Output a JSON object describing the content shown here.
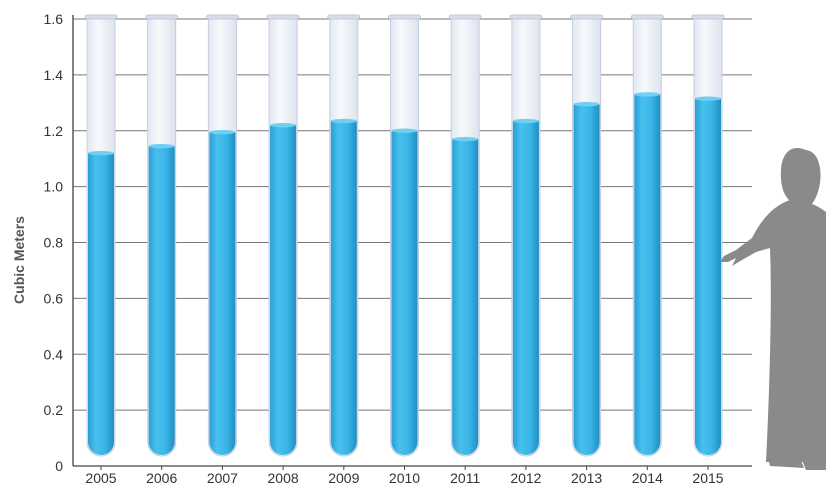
{
  "chart_data": {
    "type": "bar",
    "title": "",
    "xlabel": "",
    "ylabel": "Cubic Meters",
    "categories": [
      "2005",
      "2006",
      "2007",
      "2008",
      "2009",
      "2010",
      "2011",
      "2012",
      "2013",
      "2014",
      "2015"
    ],
    "values": [
      1.12,
      1.145,
      1.195,
      1.22,
      1.235,
      1.2,
      1.17,
      1.235,
      1.295,
      1.33,
      1.315
    ],
    "ylim": [
      0,
      1.6
    ],
    "yticks": [
      "0",
      "0.2",
      "0.4",
      "0.6",
      "0.8",
      "1.0",
      "1.2",
      "1.4",
      "1.6"
    ],
    "grid": true,
    "legend": "none",
    "bar_style": "test-tube",
    "colors": {
      "liquid": "#33b3e3",
      "liquid_dark": "#1f95c9",
      "tube": "#e9edf5",
      "tube_border": "#c5ccdc",
      "grid": "#777777",
      "silhouette": "#8a8a8a"
    },
    "decoration": "person-silhouette"
  }
}
